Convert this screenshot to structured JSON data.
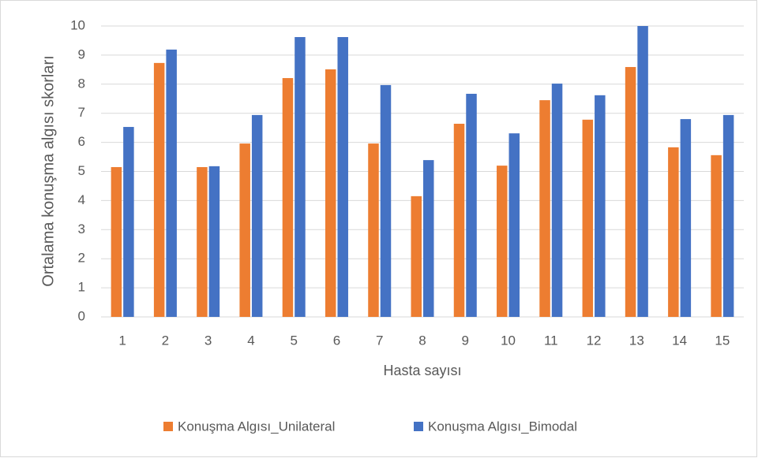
{
  "chart_data": {
    "type": "bar",
    "y_label": "Ortalama konuşma algısı skorları",
    "x_label": "Hasta sayısı",
    "categories": [
      "1",
      "2",
      "3",
      "4",
      "5",
      "6",
      "7",
      "8",
      "9",
      "10",
      "11",
      "12",
      "13",
      "14",
      "15"
    ],
    "series": [
      {
        "name": "Konuşma Algısı_Unilateral",
        "color": "#ed7d31",
        "values": [
          5.15,
          8.73,
          5.15,
          5.96,
          8.21,
          8.51,
          5.96,
          4.15,
          6.64,
          5.2,
          7.45,
          6.78,
          8.59,
          5.83,
          5.56
        ]
      },
      {
        "name": "Konuşma Algısı_Bimodal",
        "color": "#4472c4",
        "values": [
          6.53,
          9.19,
          5.18,
          6.94,
          9.62,
          9.62,
          7.97,
          5.39,
          7.67,
          6.31,
          8.02,
          7.62,
          10,
          6.8,
          6.94
        ]
      }
    ],
    "ylim": [
      0,
      10
    ],
    "yticks": [
      0,
      1,
      2,
      3,
      4,
      5,
      6,
      7,
      8,
      9,
      10
    ],
    "grid": true,
    "legend": "bottom"
  }
}
